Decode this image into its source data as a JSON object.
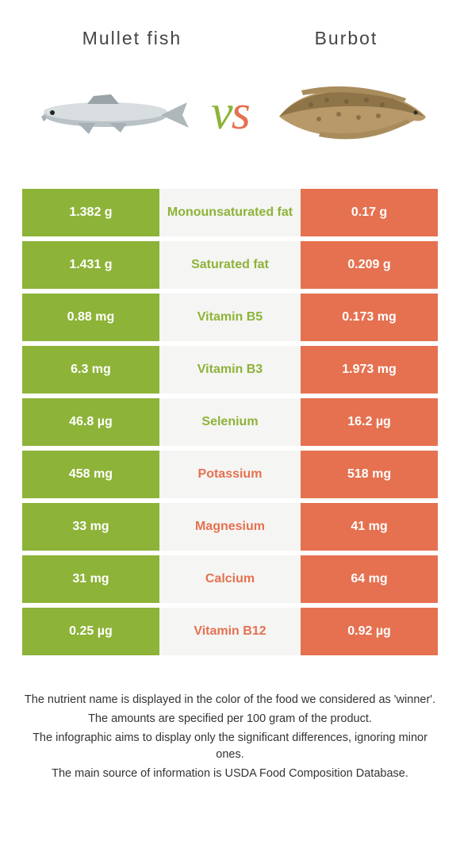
{
  "colors": {
    "left": "#8DB338",
    "right": "#E57150",
    "mid_bg": "#f5f5f3",
    "text_dark": "#333333"
  },
  "header": {
    "left_title": "Mullet fish",
    "right_title": "Burbot"
  },
  "vs": {
    "label": "vs"
  },
  "rows": [
    {
      "left": "1.382 g",
      "name": "Monounsaturated fat",
      "right": "0.17 g",
      "winner": "left"
    },
    {
      "left": "1.431 g",
      "name": "Saturated fat",
      "right": "0.209 g",
      "winner": "left"
    },
    {
      "left": "0.88 mg",
      "name": "Vitamin B5",
      "right": "0.173 mg",
      "winner": "left"
    },
    {
      "left": "6.3 mg",
      "name": "Vitamin B3",
      "right": "1.973 mg",
      "winner": "left"
    },
    {
      "left": "46.8 µg",
      "name": "Selenium",
      "right": "16.2 µg",
      "winner": "left"
    },
    {
      "left": "458 mg",
      "name": "Potassium",
      "right": "518 mg",
      "winner": "right"
    },
    {
      "left": "33 mg",
      "name": "Magnesium",
      "right": "41 mg",
      "winner": "right"
    },
    {
      "left": "31 mg",
      "name": "Calcium",
      "right": "64 mg",
      "winner": "right"
    },
    {
      "left": "0.25 µg",
      "name": "Vitamin B12",
      "right": "0.92 µg",
      "winner": "right"
    }
  ],
  "footnotes": [
    "The nutrient name is displayed in the color of the food we considered as 'winner'.",
    "The amounts are specified per 100 gram of the product.",
    "The infographic aims to display only the significant differences, ignoring minor ones.",
    "The main source of information is USDA Food Composition Database."
  ]
}
